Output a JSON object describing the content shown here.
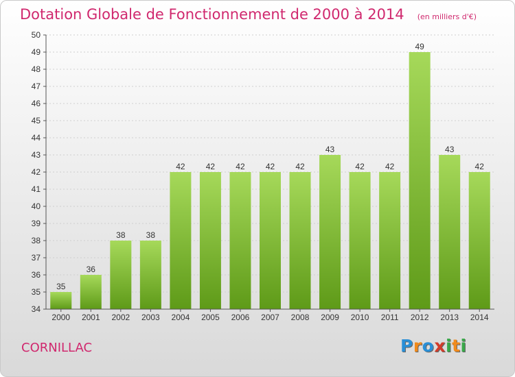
{
  "title": "Dotation Globale de Fonctionnement de 2000 à 2014",
  "subtitle": "(en milliers d'€)",
  "commune": "CORNILLAC",
  "logo_text": "Proxiti",
  "colors": {
    "title": "#d0286e",
    "bar_light": "#a6d95a",
    "bar_dark": "#5e9a18"
  },
  "chart_data": {
    "type": "bar",
    "title": "Dotation Globale de Fonctionnement de 2000 à 2014",
    "subtitle": "(en milliers d'€)",
    "categories": [
      "2000",
      "2001",
      "2002",
      "2003",
      "2004",
      "2005",
      "2006",
      "2007",
      "2008",
      "2009",
      "2010",
      "2011",
      "2012",
      "2013",
      "2014"
    ],
    "values": [
      35,
      36,
      38,
      38,
      42,
      42,
      42,
      42,
      42,
      43,
      42,
      42,
      49,
      43,
      42
    ],
    "ylim": [
      34,
      50
    ],
    "yticks": [
      34,
      35,
      36,
      37,
      38,
      39,
      40,
      41,
      42,
      43,
      44,
      45,
      46,
      47,
      48,
      49,
      50
    ],
    "grid": true,
    "data_labels": true
  }
}
